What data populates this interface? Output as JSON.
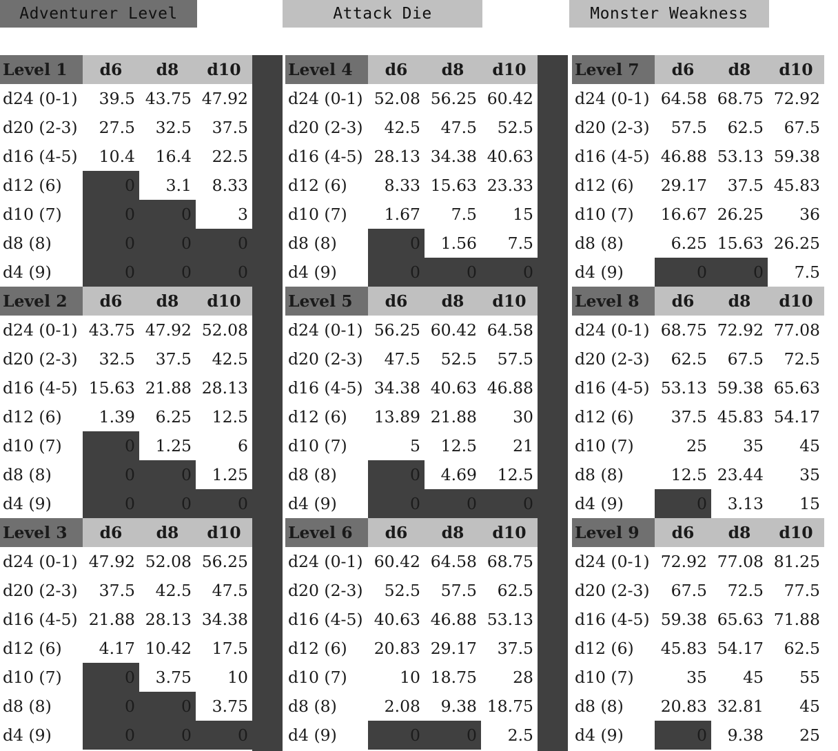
{
  "legend": {
    "level": "Adventurer Level",
    "attack": "Attack Die",
    "weakness": "Monster Weakness"
  },
  "columns": [
    "d6",
    "d8",
    "d10"
  ],
  "row_labels": [
    "d24 (0-1)",
    "d20 (2-3)",
    "d16 (4-5)",
    "d12 (6)",
    "d10 (7)",
    "d8 (8)",
    "d4 (9)"
  ],
  "levels": [
    {
      "title": "Level 1",
      "rows": [
        [
          "39.5",
          "43.75",
          "47.92"
        ],
        [
          "27.5",
          "32.5",
          "37.5"
        ],
        [
          "10.4",
          "16.4",
          "22.5"
        ],
        [
          "0",
          "3.1",
          "8.33"
        ],
        [
          "0",
          "0",
          "3"
        ],
        [
          "0",
          "0",
          "0"
        ],
        [
          "0",
          "0",
          "0"
        ]
      ]
    },
    {
      "title": "Level 2",
      "rows": [
        [
          "43.75",
          "47.92",
          "52.08"
        ],
        [
          "32.5",
          "37.5",
          "42.5"
        ],
        [
          "15.63",
          "21.88",
          "28.13"
        ],
        [
          "1.39",
          "6.25",
          "12.5"
        ],
        [
          "0",
          "1.25",
          "6"
        ],
        [
          "0",
          "0",
          "1.25"
        ],
        [
          "0",
          "0",
          "0"
        ]
      ]
    },
    {
      "title": "Level 3",
      "rows": [
        [
          "47.92",
          "52.08",
          "56.25"
        ],
        [
          "37.5",
          "42.5",
          "47.5"
        ],
        [
          "21.88",
          "28.13",
          "34.38"
        ],
        [
          "4.17",
          "10.42",
          "17.5"
        ],
        [
          "0",
          "3.75",
          "10"
        ],
        [
          "0",
          "0",
          "3.75"
        ],
        [
          "0",
          "0",
          "0"
        ]
      ]
    },
    {
      "title": "Level 4",
      "rows": [
        [
          "52.08",
          "56.25",
          "60.42"
        ],
        [
          "42.5",
          "47.5",
          "52.5"
        ],
        [
          "28.13",
          "34.38",
          "40.63"
        ],
        [
          "8.33",
          "15.63",
          "23.33"
        ],
        [
          "1.67",
          "7.5",
          "15"
        ],
        [
          "0",
          "1.56",
          "7.5"
        ],
        [
          "0",
          "0",
          "0"
        ]
      ]
    },
    {
      "title": "Level 5",
      "rows": [
        [
          "56.25",
          "60.42",
          "64.58"
        ],
        [
          "47.5",
          "52.5",
          "57.5"
        ],
        [
          "34.38",
          "40.63",
          "46.88"
        ],
        [
          "13.89",
          "21.88",
          "30"
        ],
        [
          "5",
          "12.5",
          "21"
        ],
        [
          "0",
          "4.69",
          "12.5"
        ],
        [
          "0",
          "0",
          "0"
        ]
      ]
    },
    {
      "title": "Level 6",
      "rows": [
        [
          "60.42",
          "64.58",
          "68.75"
        ],
        [
          "52.5",
          "57.5",
          "62.5"
        ],
        [
          "40.63",
          "46.88",
          "53.13"
        ],
        [
          "20.83",
          "29.17",
          "37.5"
        ],
        [
          "10",
          "18.75",
          "28"
        ],
        [
          "2.08",
          "9.38",
          "18.75"
        ],
        [
          "0",
          "0",
          "2.5"
        ]
      ]
    },
    {
      "title": "Level 7",
      "rows": [
        [
          "64.58",
          "68.75",
          "72.92"
        ],
        [
          "57.5",
          "62.5",
          "67.5"
        ],
        [
          "46.88",
          "53.13",
          "59.38"
        ],
        [
          "29.17",
          "37.5",
          "45.83"
        ],
        [
          "16.67",
          "26.25",
          "36"
        ],
        [
          "6.25",
          "15.63",
          "26.25"
        ],
        [
          "0",
          "0",
          "7.5"
        ]
      ]
    },
    {
      "title": "Level 8",
      "rows": [
        [
          "68.75",
          "72.92",
          "77.08"
        ],
        [
          "62.5",
          "67.5",
          "72.5"
        ],
        [
          "53.13",
          "59.38",
          "65.63"
        ],
        [
          "37.5",
          "45.83",
          "54.17"
        ],
        [
          "25",
          "35",
          "45"
        ],
        [
          "12.5",
          "23.44",
          "35"
        ],
        [
          "0",
          "3.13",
          "15"
        ]
      ]
    },
    {
      "title": "Level 9",
      "rows": [
        [
          "72.92",
          "77.08",
          "81.25"
        ],
        [
          "67.5",
          "72.5",
          "77.5"
        ],
        [
          "59.38",
          "65.63",
          "71.88"
        ],
        [
          "45.83",
          "54.17",
          "62.5"
        ],
        [
          "35",
          "45",
          "55"
        ],
        [
          "20.83",
          "32.81",
          "45"
        ],
        [
          "0",
          "9.38",
          "25"
        ]
      ]
    }
  ],
  "colors": {
    "level_title": "#707070",
    "attack_die": "#c0c0c0",
    "zero_cell": "#404040",
    "value_cell": "#ffffff"
  }
}
